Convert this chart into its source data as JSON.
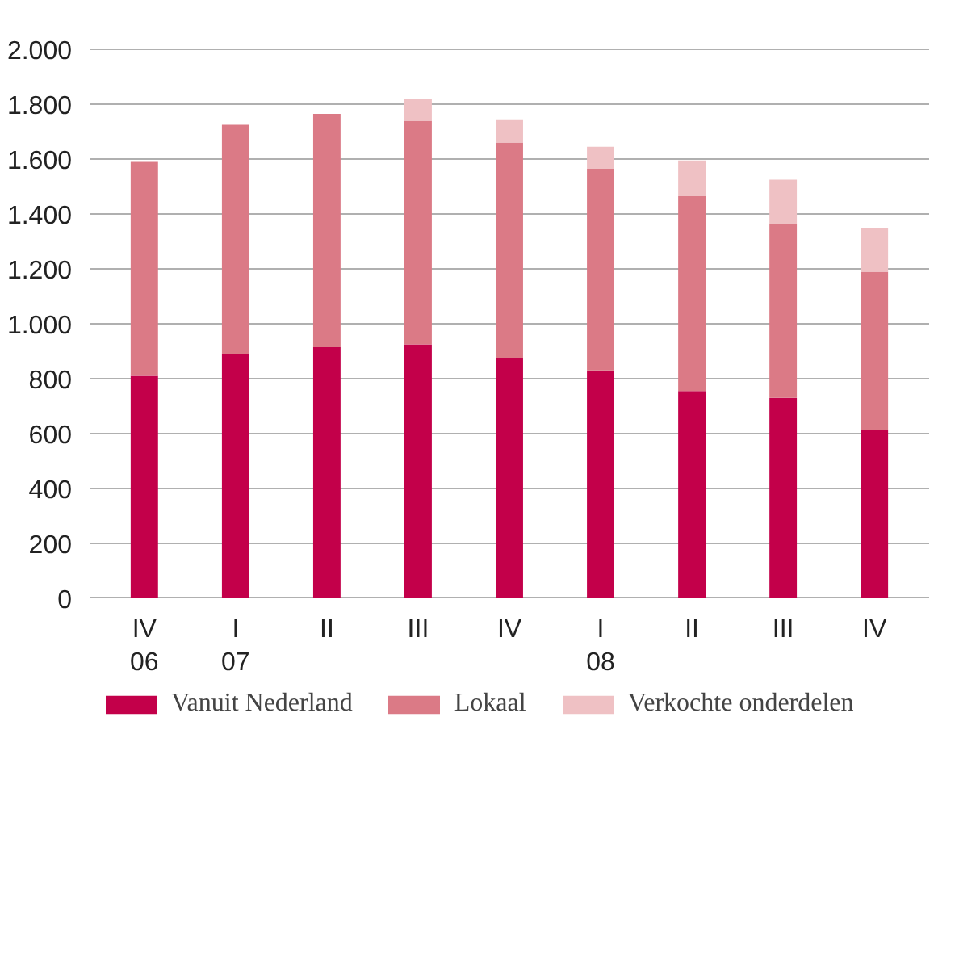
{
  "chart_data": {
    "type": "bar",
    "stacked": true,
    "categories": [
      "IV\n06",
      "I\n07",
      "II",
      "III",
      "IV",
      "I\n08",
      "II",
      "III",
      "IV"
    ],
    "series": [
      {
        "name": "Vanuit Nederland",
        "color": "#c3004a",
        "values": [
          810,
          890,
          915,
          925,
          875,
          830,
          755,
          730,
          615
        ]
      },
      {
        "name": "Lokaal",
        "color": "#db7a86",
        "values": [
          780,
          835,
          850,
          815,
          785,
          735,
          710,
          635,
          575
        ]
      },
      {
        "name": "Verkochte onderdelen",
        "color": "#efc1c4",
        "values": [
          0,
          0,
          0,
          80,
          85,
          80,
          130,
          160,
          160
        ]
      }
    ],
    "ylim": [
      0,
      2000
    ],
    "yticks": [
      0,
      200,
      400,
      600,
      800,
      {
        "value": 1000,
        "label": "1.000"
      },
      {
        "value": 1200,
        "label": "1.200"
      },
      {
        "value": 1400,
        "label": "1.400"
      },
      {
        "value": 1600,
        "label": "1.600"
      },
      {
        "value": 1800,
        "label": "1.800"
      },
      {
        "value": 2000,
        "label": "2.000"
      }
    ],
    "grid": "y",
    "legend": "bottom"
  }
}
